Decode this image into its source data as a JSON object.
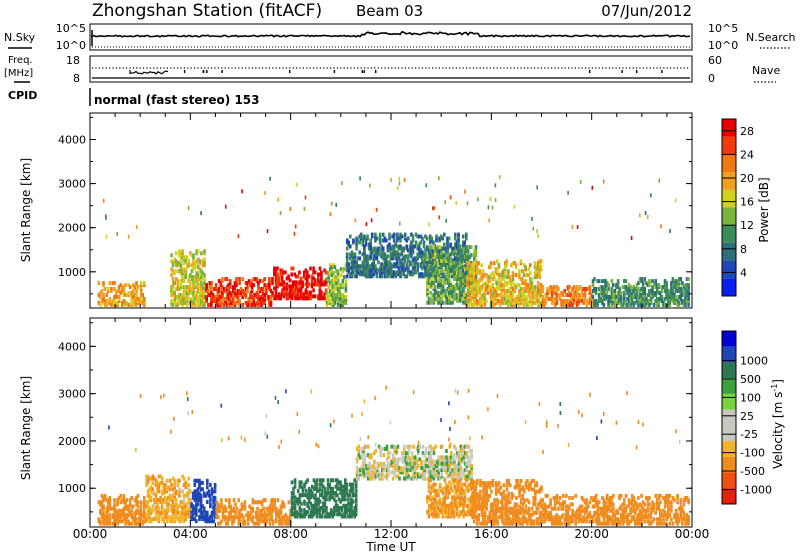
{
  "header": {
    "title": "Zhongshan Station (fitACF)",
    "beam": "Beam 03",
    "date": "07/Jun/2012"
  },
  "top_panels": {
    "nsky_label": "N.Sky",
    "nsky_ticks": [
      "10^5",
      "10^0"
    ],
    "nsearch_label": "N.Search",
    "nsearch_ticks": [
      "10^5",
      "10^0"
    ],
    "freq_label_1": "Freq.",
    "freq_label_2": "[MHz]",
    "freq_ticks": [
      "18",
      "8"
    ],
    "nave_label": "Nave",
    "nave_ticks": [
      "60",
      "0"
    ],
    "cpid_label": "CPID",
    "cpid_text": "normal (fast stereo) 153"
  },
  "colors": {
    "power": [
      "#0a1ef0",
      "#1e46b4",
      "#2d6e7d",
      "#3c8c5a",
      "#7ab43c",
      "#d2d21e",
      "#f0a01e",
      "#f07814",
      "#f03c0a",
      "#e60000"
    ],
    "velocity": [
      "#0000d2",
      "#1e46b4",
      "#2d7850",
      "#3ca03c",
      "#78d23c",
      "#c8c8be",
      "#c8c8be",
      "#f0b428",
      "#f08c1e",
      "#f05014",
      "#e61e0a"
    ]
  },
  "chart_data": [
    {
      "type": "heatmap",
      "parameter": "Power",
      "xlabel": "Time UT",
      "ylabel": "Slant Range [km]",
      "x_ticks": [
        "00:00",
        "04:00",
        "08:00",
        "12:00",
        "16:00",
        "20:00",
        "00:00"
      ],
      "xlim_hours": [
        0,
        24
      ],
      "y_ticks": [
        1000,
        2000,
        3000,
        4000
      ],
      "ylim_km": [
        180,
        4600
      ],
      "colorbar_label": "Power [dB]",
      "colorbar_ticks": [
        4,
        8,
        12,
        16,
        20,
        24,
        28
      ],
      "colorbar_range": [
        0,
        30
      ],
      "regions": [
        {
          "t0": 0.3,
          "t1": 2.2,
          "r0": 250,
          "r1": 800,
          "value": 20
        },
        {
          "t0": 3.2,
          "t1": 4.6,
          "r0": 250,
          "r1": 1500,
          "value": 16
        },
        {
          "t0": 4.6,
          "t1": 7.3,
          "r0": 250,
          "r1": 900,
          "value": 26
        },
        {
          "t0": 7.3,
          "t1": 9.4,
          "r0": 400,
          "r1": 1100,
          "value": 28
        },
        {
          "t0": 9.4,
          "t1": 10.2,
          "r0": 250,
          "r1": 1200,
          "value": 14
        },
        {
          "t0": 10.2,
          "t1": 15.0,
          "r0": 900,
          "r1": 1900,
          "value": 8
        },
        {
          "t0": 13.4,
          "t1": 15.4,
          "r0": 300,
          "r1": 1600,
          "value": 12
        },
        {
          "t0": 15.0,
          "t1": 18.0,
          "r0": 250,
          "r1": 1300,
          "value": 18
        },
        {
          "t0": 18.0,
          "t1": 20.0,
          "r0": 250,
          "r1": 700,
          "value": 22
        },
        {
          "t0": 20.0,
          "t1": 23.9,
          "r0": 250,
          "r1": 900,
          "value": 10
        }
      ]
    },
    {
      "type": "heatmap",
      "parameter": "Velocity",
      "xlabel": "Time UT",
      "ylabel": "Slant Range [km]",
      "x_ticks": [
        "00:00",
        "04:00",
        "08:00",
        "12:00",
        "16:00",
        "20:00",
        "00:00"
      ],
      "xlim_hours": [
        0,
        24
      ],
      "y_ticks": [
        1000,
        2000,
        3000,
        4000
      ],
      "ylim_km": [
        180,
        4600
      ],
      "colorbar_label": "Velocity [m s",
      "colorbar_exponent": "-1",
      "colorbar_end": "]",
      "colorbar_ticks": [
        "1000",
        "500",
        "100",
        "25",
        "-25",
        "-100",
        "-500",
        "-1000"
      ],
      "regions": [
        {
          "t0": 0.3,
          "t1": 2.2,
          "r0": 250,
          "r1": 900,
          "value": -300
        },
        {
          "t0": 2.2,
          "t1": 4.0,
          "r0": 300,
          "r1": 1300,
          "value": -80
        },
        {
          "t0": 4.0,
          "t1": 5.0,
          "r0": 300,
          "r1": 1200,
          "value": 600
        },
        {
          "t0": 5.0,
          "t1": 8.0,
          "r0": 250,
          "r1": 800,
          "value": -300
        },
        {
          "t0": 8.0,
          "t1": 10.6,
          "r0": 400,
          "r1": 1200,
          "value": 200
        },
        {
          "t0": 10.6,
          "t1": 15.2,
          "r0": 1200,
          "r1": 1900,
          "value": 0
        },
        {
          "t0": 13.4,
          "t1": 15.4,
          "r0": 400,
          "r1": 1200,
          "value": -120
        },
        {
          "t0": 15.2,
          "t1": 18.0,
          "r0": 250,
          "r1": 1200,
          "value": -300
        },
        {
          "t0": 18.0,
          "t1": 23.9,
          "r0": 250,
          "r1": 900,
          "value": -300
        }
      ]
    }
  ]
}
